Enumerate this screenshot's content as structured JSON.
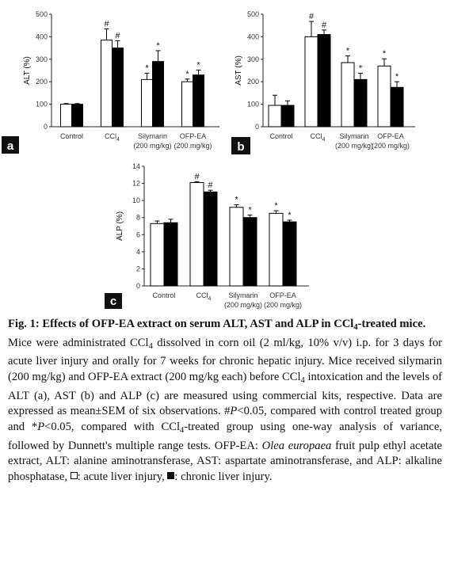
{
  "chart_data": [
    {
      "type": "bar",
      "panel_label": "a",
      "ylabel": "ALT (%)",
      "ylim": [
        0,
        500
      ],
      "yticks": [
        "0",
        "100",
        "200",
        "300",
        "400",
        "500"
      ],
      "categories": [
        {
          "name": "Control",
          "sub": ""
        },
        {
          "name": "CCl4",
          "sub": ""
        },
        {
          "name": "Silymarin",
          "sub": "(200 mg/kg)"
        },
        {
          "name": "OFP-EA",
          "sub": "(200 mg/kg)"
        }
      ],
      "series": [
        {
          "style": "open",
          "values": [
            100,
            385,
            210,
            200
          ],
          "errors": [
            3,
            50,
            28,
            12
          ],
          "marks": [
            "",
            "#",
            "*",
            "*"
          ]
        },
        {
          "style": "filled",
          "values": [
            100,
            350,
            290,
            230
          ],
          "errors": [
            3,
            32,
            48,
            22
          ],
          "marks": [
            "",
            "#",
            "*",
            "*"
          ]
        }
      ]
    },
    {
      "type": "bar",
      "panel_label": "b",
      "ylabel": "AST (%)",
      "ylim": [
        0,
        500
      ],
      "yticks": [
        "0",
        "100",
        "200",
        "300",
        "400",
        "500"
      ],
      "categories": [
        {
          "name": "Control",
          "sub": ""
        },
        {
          "name": "CCl4",
          "sub": ""
        },
        {
          "name": "Silymarin",
          "sub": "(200 mg/kg)"
        },
        {
          "name": "OFP-EA",
          "sub": "(200 mg/kg)"
        }
      ],
      "series": [
        {
          "style": "open",
          "values": [
            95,
            400,
            285,
            270
          ],
          "errors": [
            45,
            68,
            30,
            32
          ],
          "marks": [
            "",
            "#",
            "*",
            "*"
          ]
        },
        {
          "style": "filled",
          "values": [
            95,
            410,
            210,
            175
          ],
          "errors": [
            20,
            20,
            28,
            25
          ],
          "marks": [
            "",
            "#",
            "*",
            "*"
          ]
        }
      ]
    },
    {
      "type": "bar",
      "panel_label": "c",
      "ylabel": "ALP (%)",
      "ylim": [
        0,
        14
      ],
      "yticks": [
        "0",
        "2",
        "4",
        "6",
        "8",
        "10",
        "12",
        "14"
      ],
      "categories": [
        {
          "name": "Control",
          "sub": ""
        },
        {
          "name": "CCl4",
          "sub": ""
        },
        {
          "name": "Silymarin",
          "sub": "(200 mg/kg)"
        },
        {
          "name": "OFP-EA",
          "sub": "(200 mg/kg)"
        }
      ],
      "series": [
        {
          "style": "open",
          "values": [
            7.3,
            12.1,
            9.2,
            8.5
          ],
          "errors": [
            0.3,
            0.1,
            0.3,
            0.3
          ],
          "marks": [
            "",
            "#",
            "*",
            "*"
          ]
        },
        {
          "style": "filled",
          "values": [
            7.4,
            11.0,
            8.0,
            7.5
          ],
          "errors": [
            0.4,
            0.2,
            0.3,
            0.2
          ],
          "marks": [
            "",
            "#",
            "*",
            "*"
          ]
        }
      ]
    }
  ],
  "caption": {
    "title_before": "Fig. 1: Effects of OFP-EA extract on serum ALT, AST and ALP in CCl",
    "title_sub": "4",
    "title_after": "-treated mice.",
    "p1_a": "Mice were administrated CCl",
    "p1_sub1": "4",
    "p1_b": " dissolved in corn oil (2 ml/kg, 10% v/v) i.p. for 3 days for acute liver injury and orally for 7 weeks for chronic hepatic injury. Mice received silymarin (200 mg/kg) and OFP-EA extract (200 mg/kg each) before CCl",
    "p1_sub2": "4",
    "p1_c": " intoxication and the levels of ALT (a), AST (b) and ALP (c) are measured using commercial kits, respective. Data are expressed as mean±SEM of six observations. #",
    "p1_P1": "P",
    "p1_d": "<0.05, compared with control treated group and *",
    "p1_P2": "P",
    "p1_e": "<0.05, compared with CCl",
    "p1_sub3": "4",
    "p1_f": "-treated group using one-way analysis of variance, followed by Dunnett's multiple range tests. OFP-EA: ",
    "p1_species": "Olea europaea",
    "p1_g": " fruit pulp ethyl acetate extract, ALT: alanine aminotransferase, AST: aspartate aminotransferase, and ALP: alkaline phosphatase, ",
    "p1_open": ": acute liver injury, ",
    "p1_filled": ": chronic liver injury."
  }
}
